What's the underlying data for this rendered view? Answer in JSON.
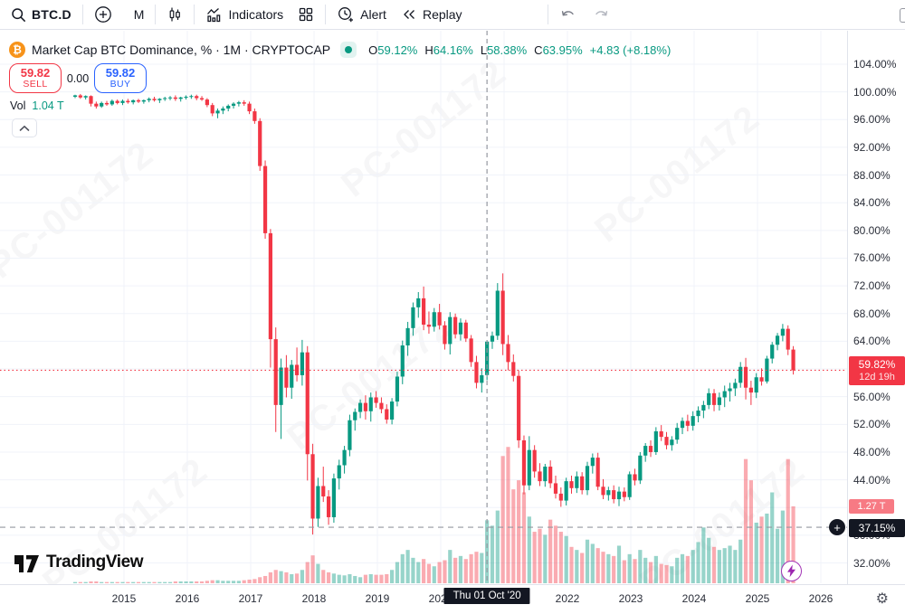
{
  "toolbar": {
    "symbol": "BTC.D",
    "interval": "M",
    "indicators_label": "Indicators",
    "alert_label": "Alert",
    "replay_label": "Replay"
  },
  "legend": {
    "title": "Market Cap BTC Dominance, % · 1M · CRYPTOCAP",
    "o_key": "O",
    "o_val": "59.12%",
    "h_key": "H",
    "h_val": "64.16%",
    "l_key": "L",
    "l_val": "58.38%",
    "c_key": "C",
    "c_val": "63.95%",
    "change": "+4.83 (+8.18%)"
  },
  "trade": {
    "sell_value": "59.82",
    "sell_label": "SELL",
    "spread": "0.00",
    "buy_value": "59.82",
    "buy_label": "BUY"
  },
  "volume_legend": {
    "label": "Vol",
    "value": "1.04 T"
  },
  "price_axis": {
    "price_label": {
      "value": "59.82%",
      "countdown": "12d 19h"
    },
    "volume_value": "1.27 T",
    "crosshair_value": "37.15%",
    "add_symbol": "+"
  },
  "time_axis": {
    "tooltip": "Thu 01 Oct '20"
  },
  "footer": {
    "brand": "TradingView"
  },
  "watermark": "PC-001172",
  "collapse_glyph": "⌃",
  "gear_glyph": "⚙",
  "colors": {
    "up": "#089981",
    "down": "#f23645",
    "vol_up": "rgba(8,153,129,0.42)",
    "vol_down": "rgba(242,54,69,0.42)",
    "grid": "#f0f3fa",
    "crosshair": "#9598a1",
    "accent_blue": "#2962ff",
    "current_line": "#f23645",
    "bolt": "#9c27b0"
  },
  "chart_data": {
    "type": "candlestick",
    "symbol": "CRYPTOCAP:BTC.D",
    "interval": "1M",
    "start_month": "2014-04",
    "title": "Market Cap BTC Dominance, %",
    "y_axis": {
      "unit": "%",
      "tick_values": [
        104,
        100,
        96,
        92,
        88,
        84,
        80,
        76,
        72,
        68,
        64,
        60,
        56,
        52,
        48,
        44,
        40,
        36,
        32
      ],
      "range": [
        28,
        106
      ]
    },
    "x_years": [
      2015,
      2016,
      2017,
      2018,
      2019,
      2020,
      2021,
      2022,
      2023,
      2024,
      2025,
      2026
    ],
    "current_price": 59.82,
    "crosshair": {
      "month_index": 78,
      "price": 37.15,
      "date": "Thu 01 Oct '20"
    },
    "last_volume_T": 1.27,
    "ohlcv": [
      [
        99.3,
        99.6,
        99.1,
        99.5,
        0.02
      ],
      [
        99.5,
        99.7,
        99.0,
        99.2,
        0.02
      ],
      [
        99.2,
        99.5,
        98.9,
        99.4,
        0.02
      ],
      [
        99.4,
        99.5,
        97.9,
        98.3,
        0.03
      ],
      [
        98.3,
        98.6,
        97.6,
        97.9,
        0.03
      ],
      [
        97.9,
        98.6,
        97.7,
        98.4,
        0.02
      ],
      [
        98.4,
        98.7,
        98.0,
        98.2,
        0.02
      ],
      [
        98.2,
        98.9,
        98.0,
        98.7,
        0.02
      ],
      [
        98.7,
        98.9,
        98.2,
        98.4,
        0.02
      ],
      [
        98.4,
        98.9,
        98.1,
        98.7,
        0.02
      ],
      [
        98.7,
        99.0,
        98.3,
        98.5,
        0.02
      ],
      [
        98.5,
        98.9,
        98.2,
        98.8,
        0.02
      ],
      [
        98.8,
        99.0,
        98.4,
        98.6,
        0.02
      ],
      [
        98.6,
        98.9,
        98.3,
        98.8,
        0.02
      ],
      [
        98.8,
        99.2,
        98.5,
        99.0,
        0.02
      ],
      [
        99.0,
        99.3,
        98.6,
        98.8,
        0.02
      ],
      [
        98.8,
        99.1,
        98.4,
        99.0,
        0.02
      ],
      [
        99.0,
        99.3,
        98.7,
        99.1,
        0.02
      ],
      [
        99.1,
        99.4,
        98.8,
        99.2,
        0.02
      ],
      [
        99.2,
        99.5,
        98.7,
        99.0,
        0.03
      ],
      [
        99.0,
        99.3,
        98.6,
        99.2,
        0.03
      ],
      [
        99.2,
        99.5,
        98.9,
        99.3,
        0.03
      ],
      [
        99.3,
        99.6,
        99.0,
        99.4,
        0.03
      ],
      [
        99.4,
        99.6,
        98.8,
        99.1,
        0.03
      ],
      [
        99.1,
        99.4,
        98.7,
        98.9,
        0.03
      ],
      [
        98.9,
        99.1,
        97.8,
        98.1,
        0.04
      ],
      [
        98.1,
        98.4,
        96.5,
        96.9,
        0.05
      ],
      [
        96.9,
        97.6,
        96.2,
        97.3,
        0.05
      ],
      [
        97.3,
        97.9,
        96.8,
        97.6,
        0.04
      ],
      [
        97.6,
        98.2,
        97.2,
        98.0,
        0.04
      ],
      [
        98.0,
        98.5,
        97.6,
        98.3,
        0.04
      ],
      [
        98.3,
        98.7,
        97.9,
        98.5,
        0.04
      ],
      [
        98.5,
        98.8,
        98.0,
        98.3,
        0.05
      ],
      [
        98.3,
        98.6,
        96.8,
        97.2,
        0.06
      ],
      [
        97.2,
        97.6,
        95.4,
        95.8,
        0.07
      ],
      [
        95.8,
        96.2,
        88.6,
        89.3,
        0.1
      ],
      [
        89.3,
        90.1,
        78.8,
        79.6,
        0.12
      ],
      [
        79.6,
        80.2,
        60.2,
        64.3,
        0.18
      ],
      [
        64.3,
        66.0,
        50.9,
        54.8,
        0.22
      ],
      [
        54.8,
        61.5,
        49.9,
        60.2,
        0.2
      ],
      [
        60.2,
        62.0,
        55.9,
        57.3,
        0.18
      ],
      [
        57.3,
        61.3,
        55.7,
        60.6,
        0.15
      ],
      [
        60.6,
        63.1,
        58.2,
        59.1,
        0.16
      ],
      [
        59.1,
        64.2,
        57.6,
        62.4,
        0.22
      ],
      [
        62.4,
        63.3,
        43.9,
        47.7,
        0.35
      ],
      [
        47.7,
        49.2,
        36.1,
        38.4,
        0.46
      ],
      [
        38.4,
        44.3,
        37.2,
        43.1,
        0.32
      ],
      [
        43.1,
        45.9,
        40.8,
        41.6,
        0.22
      ],
      [
        41.6,
        42.5,
        37.5,
        38.6,
        0.18
      ],
      [
        38.6,
        44.9,
        37.8,
        44.2,
        0.16
      ],
      [
        44.2,
        46.9,
        42.6,
        46.1,
        0.14
      ],
      [
        46.1,
        48.9,
        44.9,
        48.3,
        0.13
      ],
      [
        48.3,
        53.4,
        47.4,
        52.6,
        0.15
      ],
      [
        52.6,
        54.3,
        51.1,
        53.8,
        0.12
      ],
      [
        53.8,
        55.6,
        52.9,
        55.1,
        0.1
      ],
      [
        55.1,
        56.2,
        52.7,
        53.9,
        0.14
      ],
      [
        53.9,
        56.6,
        52.4,
        55.9,
        0.15
      ],
      [
        55.9,
        56.8,
        54.4,
        55.1,
        0.14
      ],
      [
        55.1,
        55.9,
        53.6,
        54.2,
        0.14
      ],
      [
        54.2,
        54.9,
        52.1,
        52.7,
        0.15
      ],
      [
        52.7,
        55.8,
        52.0,
        55.3,
        0.22
      ],
      [
        55.3,
        59.6,
        54.6,
        58.9,
        0.35
      ],
      [
        58.9,
        64.1,
        57.8,
        63.4,
        0.48
      ],
      [
        63.4,
        66.8,
        61.9,
        65.9,
        0.55
      ],
      [
        65.9,
        69.6,
        64.8,
        68.9,
        0.42
      ],
      [
        68.9,
        71.1,
        67.4,
        70.2,
        0.35
      ],
      [
        70.2,
        71.9,
        65.6,
        66.4,
        0.4
      ],
      [
        66.4,
        68.3,
        65.1,
        66.1,
        0.32
      ],
      [
        66.1,
        68.8,
        65.4,
        68.2,
        0.28
      ],
      [
        68.2,
        69.4,
        65.7,
        66.3,
        0.35
      ],
      [
        66.3,
        66.9,
        62.8,
        63.6,
        0.38
      ],
      [
        63.6,
        68.2,
        62.1,
        67.5,
        0.55
      ],
      [
        67.5,
        68.0,
        64.4,
        65.0,
        0.42
      ],
      [
        65.0,
        67.3,
        64.1,
        66.7,
        0.45
      ],
      [
        66.7,
        67.1,
        63.9,
        64.4,
        0.4
      ],
      [
        64.4,
        64.9,
        60.3,
        61.0,
        0.48
      ],
      [
        61.0,
        61.9,
        57.2,
        58.0,
        0.52
      ],
      [
        58.0,
        60.1,
        56.6,
        59.1,
        0.5
      ],
      [
        59.12,
        64.16,
        58.38,
        63.95,
        1.04
      ],
      [
        63.95,
        65.4,
        62.9,
        64.8,
        0.95
      ],
      [
        64.8,
        72.4,
        64.2,
        71.3,
        1.2
      ],
      [
        71.3,
        73.8,
        62.0,
        63.6,
        2.1
      ],
      [
        63.6,
        64.9,
        59.8,
        61.0,
        2.25
      ],
      [
        61.0,
        62.1,
        58.2,
        59.0,
        1.55
      ],
      [
        59.0,
        59.8,
        48.6,
        49.7,
        1.7
      ],
      [
        49.7,
        50.4,
        41.9,
        43.2,
        1.5
      ],
      [
        43.2,
        50.3,
        42.5,
        48.3,
        1.1
      ],
      [
        48.3,
        49.0,
        44.3,
        45.2,
        0.85
      ],
      [
        45.2,
        46.4,
        43.1,
        43.8,
        0.9
      ],
      [
        43.8,
        46.3,
        43.0,
        45.9,
        0.8
      ],
      [
        45.9,
        46.8,
        42.8,
        43.5,
        1.05
      ],
      [
        43.5,
        44.6,
        41.3,
        42.0,
        0.95
      ],
      [
        42.0,
        42.9,
        40.1,
        41.0,
        0.85
      ],
      [
        41.0,
        44.3,
        40.3,
        43.8,
        0.78
      ],
      [
        43.8,
        44.6,
        42.0,
        42.8,
        0.6
      ],
      [
        42.8,
        45.2,
        42.1,
        44.5,
        0.55
      ],
      [
        44.5,
        45.1,
        41.9,
        42.5,
        0.5
      ],
      [
        42.5,
        46.6,
        41.8,
        46.0,
        0.72
      ],
      [
        46.0,
        47.8,
        44.9,
        47.2,
        0.65
      ],
      [
        47.2,
        47.9,
        42.5,
        43.0,
        0.58
      ],
      [
        43.0,
        44.1,
        41.2,
        41.8,
        0.52
      ],
      [
        41.8,
        43.0,
        41.0,
        42.5,
        0.48
      ],
      [
        42.5,
        43.2,
        40.6,
        41.2,
        0.45
      ],
      [
        41.2,
        43.0,
        40.2,
        42.3,
        0.62
      ],
      [
        42.3,
        42.9,
        40.9,
        41.5,
        0.38
      ],
      [
        41.5,
        45.2,
        41.1,
        44.8,
        0.48
      ],
      [
        44.8,
        45.6,
        43.2,
        43.9,
        0.4
      ],
      [
        43.9,
        48.0,
        43.4,
        47.5,
        0.55
      ],
      [
        47.5,
        49.3,
        46.6,
        48.9,
        0.42
      ],
      [
        48.9,
        49.7,
        47.3,
        48.0,
        0.35
      ],
      [
        48.0,
        51.6,
        47.6,
        51.0,
        0.45
      ],
      [
        51.0,
        51.9,
        49.6,
        50.2,
        0.32
      ],
      [
        50.2,
        50.9,
        48.4,
        49.0,
        0.3
      ],
      [
        49.0,
        50.3,
        48.2,
        49.8,
        0.28
      ],
      [
        49.8,
        52.2,
        49.2,
        51.5,
        0.42
      ],
      [
        51.5,
        53.0,
        50.6,
        52.5,
        0.48
      ],
      [
        52.5,
        53.4,
        51.0,
        51.8,
        0.45
      ],
      [
        51.8,
        53.9,
        51.1,
        53.2,
        0.55
      ],
      [
        53.2,
        54.6,
        52.3,
        54.0,
        0.68
      ],
      [
        54.0,
        55.4,
        52.9,
        54.8,
        0.92
      ],
      [
        54.8,
        57.2,
        54.2,
        56.5,
        0.75
      ],
      [
        56.5,
        57.1,
        53.9,
        54.8,
        0.6
      ],
      [
        54.8,
        56.6,
        54.0,
        55.9,
        0.55
      ],
      [
        55.9,
        57.6,
        54.5,
        56.8,
        0.58
      ],
      [
        56.8,
        58.0,
        55.3,
        57.2,
        0.62
      ],
      [
        57.2,
        58.6,
        56.1,
        58.0,
        0.55
      ],
      [
        58.0,
        61.0,
        57.3,
        60.3,
        0.72
      ],
      [
        60.3,
        61.6,
        55.6,
        57.3,
        2.05
      ],
      [
        57.3,
        58.3,
        54.8,
        56.6,
        1.7
      ],
      [
        56.6,
        59.4,
        55.8,
        58.8,
        1.0
      ],
      [
        58.8,
        60.1,
        57.6,
        58.2,
        1.1
      ],
      [
        58.2,
        61.9,
        57.9,
        61.5,
        1.15
      ],
      [
        61.5,
        63.9,
        60.8,
        63.5,
        1.5
      ],
      [
        63.5,
        65.2,
        62.7,
        64.8,
        0.9
      ],
      [
        64.8,
        66.5,
        64.0,
        65.8,
        1.2
      ],
      [
        65.8,
        66.3,
        62.0,
        62.8,
        2.05
      ],
      [
        62.8,
        63.3,
        59.2,
        59.82,
        1.27
      ]
    ]
  }
}
